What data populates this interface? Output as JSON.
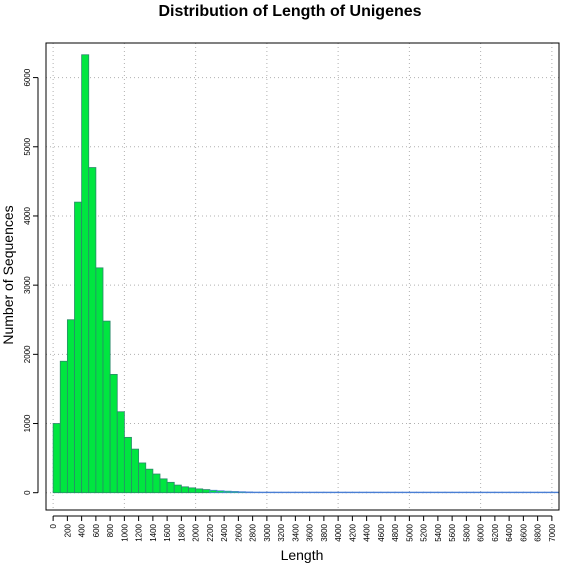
{
  "chart_data": {
    "type": "bar",
    "title": "Distribution of Length of Unigenes",
    "xlabel": "Length",
    "ylabel": "Number of Sequences",
    "bin_width": 100,
    "x_bin_starts": [
      0,
      100,
      200,
      300,
      400,
      500,
      600,
      700,
      800,
      900,
      1000,
      1100,
      1200,
      1300,
      1400,
      1500,
      1600,
      1700,
      1800,
      1900,
      2000,
      2100,
      2200,
      2300,
      2400,
      2500,
      2600,
      2700,
      2800,
      2900,
      3000,
      3100,
      3200,
      3300,
      3400,
      3500,
      3600,
      3700,
      3800,
      3900,
      4000,
      4100,
      4200,
      4300,
      4400,
      4500,
      4600,
      4700,
      4800,
      4900,
      5000,
      5100,
      5200,
      5300,
      5400,
      5500,
      5600,
      5700,
      5800,
      5900,
      6000,
      6100,
      6200,
      6300,
      6400,
      6500,
      6600,
      6700,
      6800,
      6900,
      7000
    ],
    "values": [
      1000,
      1900,
      2500,
      4200,
      6330,
      4700,
      3250,
      2480,
      1710,
      1170,
      800,
      630,
      430,
      340,
      270,
      200,
      150,
      110,
      85,
      70,
      55,
      45,
      35,
      28,
      22,
      18,
      14,
      11,
      9,
      7,
      6,
      5,
      4,
      4,
      3,
      3,
      3,
      2,
      2,
      2,
      2,
      1,
      1,
      1,
      1,
      1,
      1,
      1,
      1,
      1,
      1,
      1,
      1,
      1,
      1,
      1,
      1,
      1,
      1,
      1,
      1,
      1,
      1,
      1,
      1,
      1,
      1,
      1,
      1,
      1,
      1
    ],
    "xlim": [
      -100,
      7100
    ],
    "ylim": [
      -250,
      6500
    ],
    "x_ticks": [
      0,
      200,
      400,
      600,
      800,
      1000,
      1200,
      1400,
      1600,
      1800,
      2000,
      2200,
      2400,
      2600,
      2800,
      3000,
      3200,
      3400,
      3600,
      3800,
      4000,
      4200,
      4400,
      4600,
      4800,
      5000,
      5200,
      5400,
      5600,
      5800,
      6000,
      6200,
      6400,
      6600,
      6800,
      7000
    ],
    "y_ticks": [
      0,
      1000,
      2000,
      3000,
      4000,
      5000,
      6000
    ],
    "grid": true,
    "bar_fill": "#00e640",
    "bar_stroke": "#2a8a6a",
    "tail_line_color": "#4a7fd4",
    "grid_color": "#b0b0b0"
  }
}
